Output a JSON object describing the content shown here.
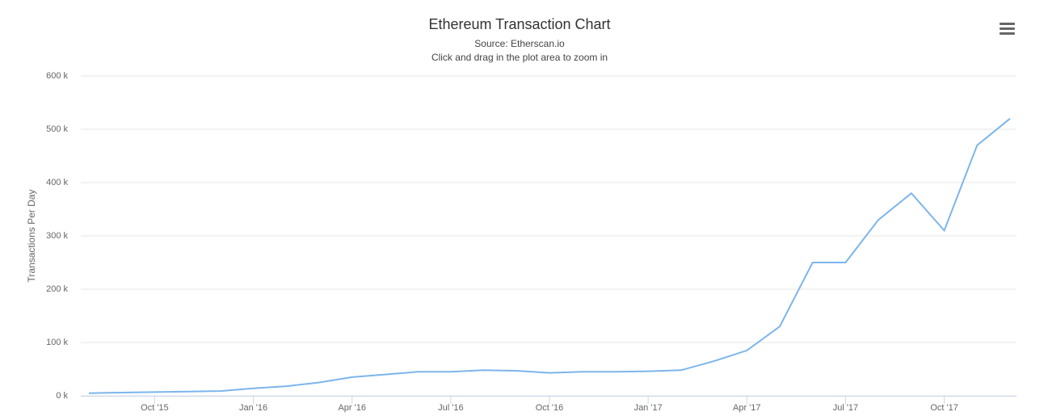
{
  "chart_data": {
    "type": "line",
    "title": "Ethereum Transaction Chart",
    "subtitle": "Source: Etherscan.io",
    "note": "Click and drag in the plot area to zoom in",
    "y_label": "Transactions Per Day",
    "x": [
      "2015-08",
      "2015-09",
      "2015-10",
      "2015-11",
      "2015-12",
      "2016-01",
      "2016-02",
      "2016-03",
      "2016-04",
      "2016-05",
      "2016-06",
      "2016-07",
      "2016-08",
      "2016-09",
      "2016-10",
      "2016-11",
      "2016-12",
      "2017-01",
      "2017-02",
      "2017-03",
      "2017-04",
      "2017-05",
      "2017-06",
      "2017-07",
      "2017-08",
      "2017-09",
      "2017-10",
      "2017-11",
      "2017-12"
    ],
    "series": [
      {
        "name": "Transactions Per Day",
        "color": "#7cb5ec",
        "values": [
          5000,
          6000,
          7000,
          8000,
          9000,
          14000,
          18000,
          25000,
          35000,
          40000,
          45000,
          45000,
          48000,
          47000,
          43000,
          45000,
          45000,
          46000,
          48000,
          65000,
          85000,
          130000,
          250000,
          250000,
          330000,
          380000,
          310000,
          470000,
          520000
        ]
      }
    ],
    "xlim": [
      "2015-08",
      "2017-12"
    ],
    "xticks": [
      {
        "value": "2015-10",
        "label": "Oct '15"
      },
      {
        "value": "2016-01",
        "label": "Jan '16"
      },
      {
        "value": "2016-04",
        "label": "Apr '16"
      },
      {
        "value": "2016-07",
        "label": "Jul '16"
      },
      {
        "value": "2016-10",
        "label": "Oct '16"
      },
      {
        "value": "2017-01",
        "label": "Jan '17"
      },
      {
        "value": "2017-04",
        "label": "Apr '17"
      },
      {
        "value": "2017-07",
        "label": "Jul '17"
      },
      {
        "value": "2017-10",
        "label": "Oct '17"
      }
    ],
    "ylim": [
      0,
      600000
    ],
    "yticks": [
      {
        "value": 0,
        "label": "0 k"
      },
      {
        "value": 100000,
        "label": "100 k"
      },
      {
        "value": 200000,
        "label": "200 k"
      },
      {
        "value": 300000,
        "label": "300 k"
      },
      {
        "value": 400000,
        "label": "400 k"
      },
      {
        "value": 500000,
        "label": "500 k"
      },
      {
        "value": 600000,
        "label": "600 k"
      }
    ],
    "grid": true
  }
}
